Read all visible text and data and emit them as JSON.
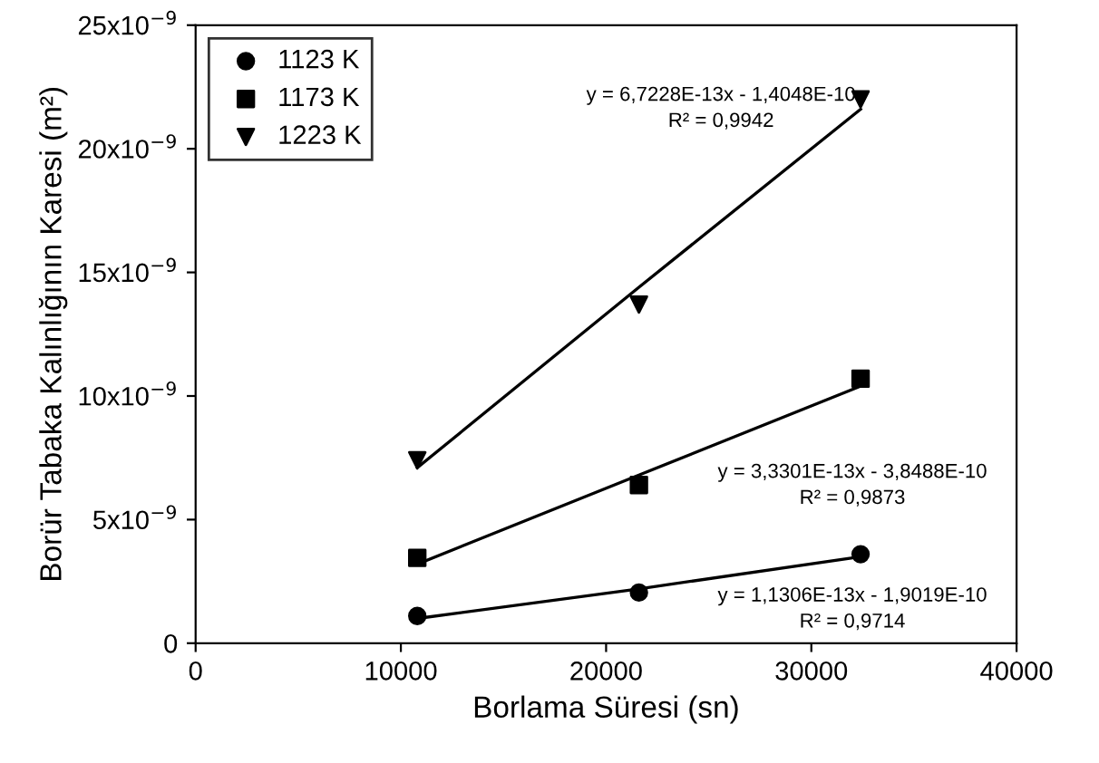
{
  "chart_data": {
    "type": "scatter",
    "xlabel": "Borlama Süresi (sn)",
    "ylabel": "Borür Tabaka Kalınlığının Karesi (m²)",
    "x": [
      10800,
      21600,
      32400
    ],
    "series": [
      {
        "name": "1123 K",
        "color": "#000000",
        "marker": "circle",
        "values": [
          1.1e-09,
          2.05e-09,
          3.6e-09
        ]
      },
      {
        "name": "1173 K",
        "color": "#000000",
        "marker": "square",
        "values": [
          3.45e-09,
          6.4e-09,
          1.07e-08
        ]
      },
      {
        "name": "1223 K",
        "color": "#000000",
        "marker": "triangle",
        "values": [
          7.4e-09,
          1.37e-08,
          2.2e-08
        ]
      },
      {
        "type": "line",
        "color": "#000000",
        "values": [
          1e-09,
          2.2e-09,
          3.5e-09
        ]
      },
      {
        "type": "line",
        "color": "#000000",
        "values": [
          3.2e-09,
          6.8e-09,
          1.04e-08
        ]
      },
      {
        "type": "line",
        "color": "#000000",
        "values": [
          7.1e-09,
          1.44e-08,
          2.16e-08
        ]
      }
    ],
    "annotations": [
      "y = 6,7228E-13x - 1,4048E-10\nR² = 0,9942",
      "y = 3,3301E-13x - 3,8488E-10\nR² = 0,9873",
      "y = 1,1306E-13x - 1,9019E-10\nR² = 0,9714"
    ],
    "xlim": [
      0,
      40000
    ],
    "xticks": [
      0,
      10000,
      20000,
      30000,
      40000
    ],
    "ylim": [
      0,
      2.5e-08
    ],
    "yticks": [
      0,
      {
        "value": 5e-09,
        "label": "5x10$^{−9}$"
      },
      {
        "value": 1e-08,
        "label": "10x10$^{−9}$"
      },
      {
        "value": 1.5e-08,
        "label": "15x10$^{−9}$"
      },
      {
        "value": 2e-08,
        "label": "20x10$^{−9}$"
      },
      {
        "value": 2.5e-08,
        "label": "25x10$^{−9}$"
      }
    ],
    "grid": false,
    "legend": "top left"
  }
}
